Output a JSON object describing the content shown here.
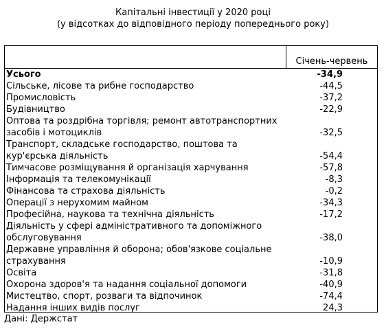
{
  "title": {
    "line1": "Капітальні інвестиції у 2020 році",
    "line2": "(у відсотках до відповідного періоду попереднього року)"
  },
  "table": {
    "column_header": "Січень-червень",
    "rows": [
      {
        "label": "Усього",
        "value": "-34,9",
        "bold": true
      },
      {
        "label": "Сільське, лісове та рибне господарство",
        "value": "-44,5"
      },
      {
        "label": "Промисловість",
        "value": "-37,2"
      },
      {
        "label": "Будівництво",
        "value": "-22,9"
      },
      {
        "label": "Оптова та роздрібна торгівля; ремонт автотранспортних засобів і мотоциклів",
        "value": "-32,5"
      },
      {
        "label": "Транспорт, складське господарство, поштова та кур'єрська діяльність",
        "value": "-54,4"
      },
      {
        "label": "Тимчасове розміщування й організація харчування",
        "value": "-57,8"
      },
      {
        "label": "Інформація та телекомунікації",
        "value": "-8,3"
      },
      {
        "label": "Фінансова та страхова діяльність",
        "value": "-0,2"
      },
      {
        "label": "Операції з нерухомим майном",
        "value": "-34,3"
      },
      {
        "label": "Професійна, наукова та технічна діяльність",
        "value": "-17,2"
      },
      {
        "label": "Діяльність у сфері адміністративного та допоміжного обслуговування",
        "value": "-38,0"
      },
      {
        "label": "Державне управління й оборона; обов'язкове соціальне страхування",
        "value": "-10,9"
      },
      {
        "label": "Освіта",
        "value": "-31,8"
      },
      {
        "label": "Охорона здоров'я та надання соціальної допомоги",
        "value": "-40,9"
      },
      {
        "label": "Мистецтво, спорт, розваги та відпочинок",
        "value": "-74,4"
      },
      {
        "label": "Надання інших видів послуг",
        "value": "24,3"
      }
    ]
  },
  "source": "Дані: Держстат"
}
